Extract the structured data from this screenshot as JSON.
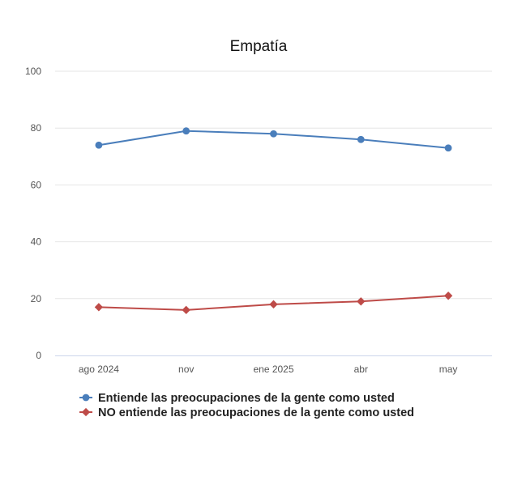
{
  "chart_data": {
    "type": "line",
    "title": "Empatía",
    "xlabel": "",
    "ylabel": "",
    "categories": [
      "ago 2024",
      "nov",
      "ene 2025",
      "abr",
      "may"
    ],
    "ylim": [
      0,
      100
    ],
    "yticks": [
      0,
      20,
      40,
      60,
      80,
      100
    ],
    "grid": true,
    "legend_position": "bottom-left",
    "series": [
      {
        "name": "Entiende las preocupaciones de la gente como usted",
        "values": [
          74,
          79,
          78,
          76,
          73
        ],
        "color": "#4a7ebb",
        "marker": "circle"
      },
      {
        "name": "NO entiende las preocupaciones de la gente como usted",
        "values": [
          17,
          16,
          18,
          19,
          21
        ],
        "color": "#be4b48",
        "marker": "diamond"
      }
    ]
  }
}
